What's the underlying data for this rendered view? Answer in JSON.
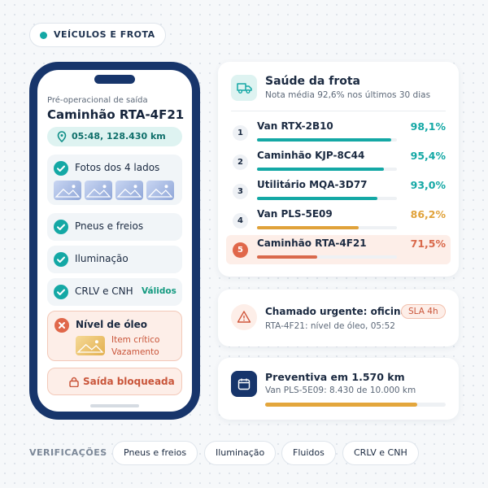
{
  "badge": "VEÍCULOS E FROTA",
  "phone": {
    "kicker": "Pré-operacional de saída",
    "vehicle": "Caminhão RTA-4F21",
    "location": "05:48, 128.430 km",
    "checks": [
      {
        "label": "Fotos dos 4 lados",
        "status": "ok",
        "photos": 4
      },
      {
        "label": "Pneus e freios",
        "status": "ok"
      },
      {
        "label": "Iluminação",
        "status": "ok"
      },
      {
        "label": "CRLV e CNH",
        "status": "ok",
        "note": "Válidos"
      },
      {
        "label": "Nível de óleo",
        "status": "fail",
        "notes": [
          "Item crítico",
          "Vazamento"
        ]
      }
    ],
    "button": "Saída bloqueada"
  },
  "fleet": {
    "title": "Saúde da frota",
    "subtitle": "Nota média 92,6% nos últimos 30 dias",
    "scale": [
      50,
      100
    ],
    "rows": [
      {
        "rank": 1,
        "name": "Van RTX-2B10",
        "score": 98.1,
        "score_label": "98,1%",
        "color": "#14a8a5"
      },
      {
        "rank": 2,
        "name": "Caminhão KJP-8C44",
        "score": 95.4,
        "score_label": "95,4%",
        "color": "#14a8a5"
      },
      {
        "rank": 3,
        "name": "Utilitário MQA-3D77",
        "score": 93.0,
        "score_label": "93,0%",
        "color": "#14a8a5"
      },
      {
        "rank": 4,
        "name": "Van PLS-5E09",
        "score": 86.2,
        "score_label": "86,2%",
        "color": "#e0a23a"
      },
      {
        "rank": 5,
        "name": "Caminhão RTA-4F21",
        "score": 71.5,
        "score_label": "71,5%",
        "color": "#d9694b"
      }
    ]
  },
  "alert": {
    "title": "Chamado urgente: oficina",
    "badge": "SLA 4h",
    "detail": "RTA-4F21: nível de óleo, 05:52"
  },
  "maintenance": {
    "title": "Preventiva em 1.570 km",
    "detail": "Van PLS-5E09: 8.430 de 10.000 km",
    "current": 8430,
    "total": 10000
  },
  "footer": {
    "label": "VERIFICAÇÕES",
    "chips": [
      "Pneus e freios",
      "Iluminação",
      "Fluidos",
      "CRLV e CNH"
    ]
  }
}
